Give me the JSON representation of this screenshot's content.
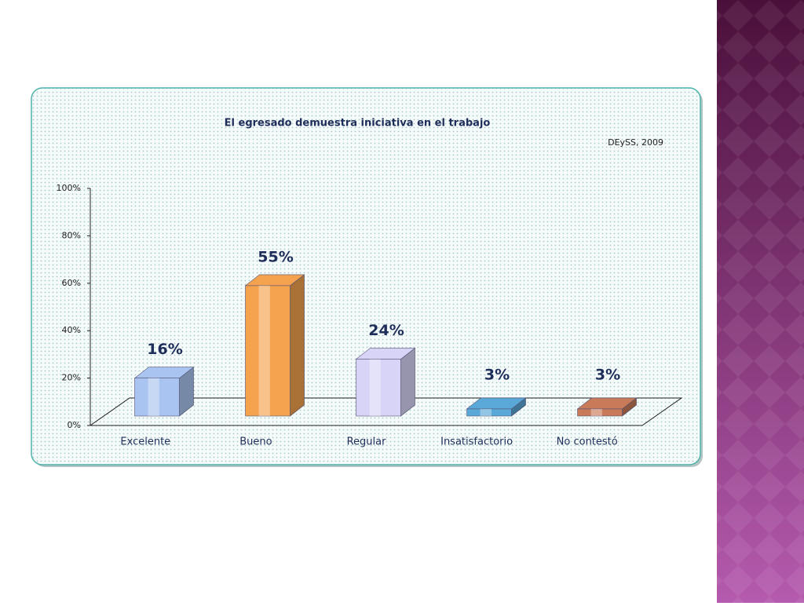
{
  "chart_data": {
    "type": "bar3d",
    "title": "El egresado demuestra iniciativa en el trabajo",
    "annotation": "DEySS, 2009",
    "categories": [
      "Excelente",
      "Bueno",
      "Regular",
      "Insatisfactorio",
      "No contestó"
    ],
    "values": [
      16,
      55,
      24,
      3,
      3
    ],
    "value_labels": [
      "16%",
      "55%",
      "24%",
      "3%",
      "3%"
    ],
    "colors": [
      "#a9c4f0",
      "#f4a24e",
      "#d8d4f8",
      "#5aa8d8",
      "#c97a58"
    ],
    "ylim": [
      0,
      100
    ],
    "yticks": [
      {
        "value": 0,
        "label": "0%"
      },
      {
        "value": 20,
        "label": "20%"
      },
      {
        "value": 40,
        "label": "40%"
      },
      {
        "value": 60,
        "label": "60%"
      },
      {
        "value": 80,
        "label": "80%"
      },
      {
        "value": 100,
        "label": "100%"
      }
    ],
    "grid": false
  }
}
